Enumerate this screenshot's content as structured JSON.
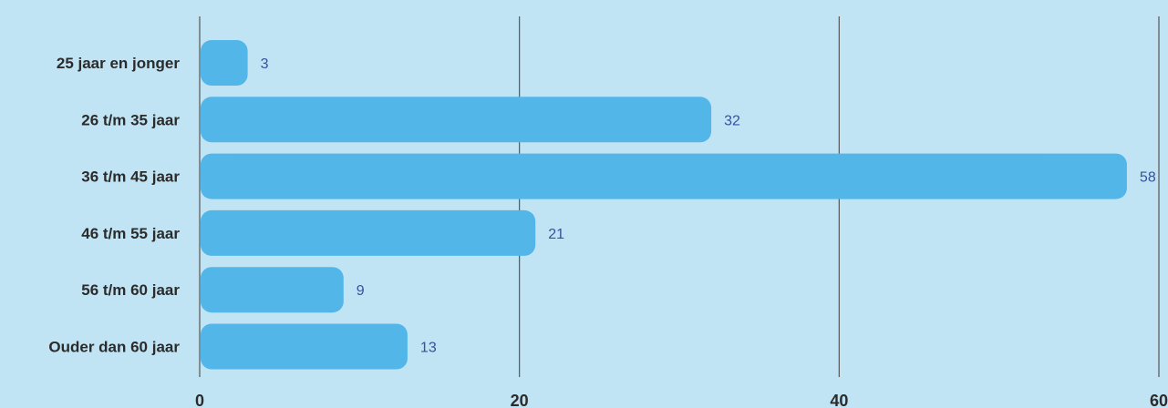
{
  "chart_data": {
    "type": "bar",
    "orientation": "horizontal",
    "categories": [
      "25 jaar en jonger",
      "26 t/m 35 jaar",
      "36 t/m 45 jaar",
      "46 t/m 55 jaar",
      "56 t/m 60 jaar",
      "Ouder dan 60 jaar"
    ],
    "values": [
      3,
      32,
      58,
      21,
      9,
      13
    ],
    "value_labels": [
      "3",
      "32",
      "58",
      "21",
      "9",
      "13"
    ],
    "xticks": [
      "0",
      "20",
      "40",
      "60"
    ],
    "xtick_values": [
      0,
      20,
      40,
      60
    ],
    "xlim": [
      0,
      60
    ],
    "grid": "vertical",
    "legend": "none",
    "title": "",
    "xlabel": "",
    "ylabel": ""
  },
  "colors": {
    "background": "#c0e4f4",
    "bar": "#52b6e8",
    "value_text": "#3a4fa0",
    "category_text": "#2b2b2b",
    "gridline": "#555555"
  }
}
